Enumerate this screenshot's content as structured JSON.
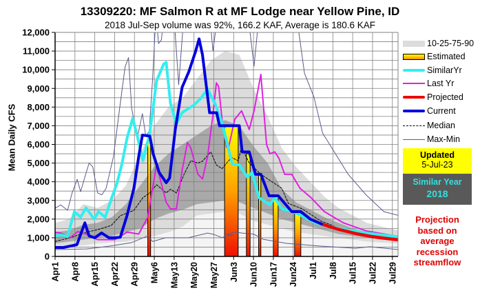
{
  "chart_data": {
    "type": "line",
    "title": "13309220: MF Salmon R at MF Lodge near Yellow Pine, ID",
    "subtitle": "2018 Jul-Sep volume was 92%, 166.2 KAF, Average is 180.6 KAF",
    "ylabel": "Mean Daily CFS",
    "xlabel": "",
    "x_unit": "days since Apr1",
    "xlim": [
      0,
      121
    ],
    "ylim": [
      0,
      12000
    ],
    "yticks": [
      "0",
      "1,000",
      "2,000",
      "3,000",
      "4,000",
      "5,000",
      "6,000",
      "7,000",
      "8,000",
      "9,000",
      "10,000",
      "11,000",
      "12,000"
    ],
    "xticks": [
      "Apr1",
      "Apr8",
      "Apr15",
      "Apr22",
      "Apr29",
      "May6",
      "May13",
      "May20",
      "May27",
      "Jun3",
      "Jun10",
      "Jun17",
      "Jun24",
      "Jul1",
      "Jul8",
      "Jul15",
      "Jul22",
      "Jul29"
    ],
    "grid": true,
    "legend_placement": "right",
    "percentile_bands": {
      "label": "10-25-75-90",
      "days": [
        0,
        5,
        10,
        15,
        20,
        25,
        30,
        35,
        40,
        45,
        50,
        55,
        60,
        65,
        70,
        75,
        80,
        85,
        90,
        95,
        100,
        105,
        110,
        115,
        121
      ],
      "p90": [
        1800,
        2000,
        2800,
        2600,
        3000,
        3800,
        5500,
        7000,
        8000,
        8500,
        9500,
        10500,
        11000,
        10800,
        9000,
        7500,
        5800,
        4800,
        4000,
        3200,
        2600,
        2200,
        1800,
        1600,
        1400
      ],
      "p75": [
        1300,
        1400,
        1700,
        1800,
        2100,
        2800,
        3800,
        4800,
        5500,
        6000,
        6500,
        7000,
        7300,
        7000,
        5900,
        5000,
        3600,
        2900,
        2500,
        2100,
        1800,
        1500,
        1300,
        1200,
        1100
      ],
      "p25": [
        700,
        800,
        900,
        1000,
        1100,
        1300,
        1500,
        2000,
        2300,
        2500,
        2800,
        2900,
        3000,
        2900,
        2600,
        2300,
        2000,
        1800,
        1600,
        1400,
        1200,
        1100,
        1000,
        900,
        850
      ],
      "p10": [
        500,
        550,
        600,
        700,
        750,
        800,
        950,
        1100,
        1300,
        1600,
        2200,
        2300,
        2400,
        2300,
        1900,
        1700,
        1500,
        1300,
        1200,
        1100,
        1000,
        900,
        800,
        750,
        700
      ]
    },
    "estimated": {
      "label": "Estimated",
      "bars": [
        {
          "start": 32.7,
          "end": 33.7,
          "value": 6450
        },
        {
          "start": 59.8,
          "end": 64.6,
          "value": 7000
        },
        {
          "start": 67.5,
          "end": 68.8,
          "value": 5500
        },
        {
          "start": 71.8,
          "end": 72.6,
          "value": 4400
        },
        {
          "start": 77.0,
          "end": 78.7,
          "value": 3200
        },
        {
          "start": 84.5,
          "end": 86.7,
          "value": 2400
        }
      ]
    },
    "series": [
      {
        "name": "Max-Min",
        "key": "max",
        "color": "#5a5a8c",
        "points": [
          [
            0,
            2580
          ],
          [
            2,
            2760
          ],
          [
            4.4,
            2470
          ],
          [
            6,
            3400
          ],
          [
            7.8,
            4130
          ],
          [
            9,
            3470
          ],
          [
            10.5,
            4250
          ],
          [
            12,
            5000
          ],
          [
            13.3,
            4800
          ],
          [
            15,
            3400
          ],
          [
            16.5,
            3300
          ],
          [
            18,
            3650
          ],
          [
            20.6,
            5350
          ],
          [
            23,
            8200
          ],
          [
            24.7,
            10150
          ],
          [
            25.9,
            10650
          ],
          [
            27,
            7950
          ],
          [
            29,
            6350
          ],
          [
            30.8,
            7650
          ],
          [
            32,
            6450
          ],
          [
            33.2,
            6700
          ],
          [
            34.4,
            9500
          ],
          [
            35.6,
            13000
          ],
          [
            36.5,
            11400
          ],
          [
            37.5,
            11600
          ],
          [
            38.5,
            13000
          ],
          [
            41.9,
            13000
          ],
          [
            43.6,
            9200
          ],
          [
            45.5,
            13000
          ],
          [
            54.5,
            13000
          ],
          [
            55.7,
            11000
          ],
          [
            57.4,
            13000
          ],
          [
            68,
            13000
          ],
          [
            70.2,
            10200
          ],
          [
            72,
            13000
          ],
          [
            86,
            12000
          ],
          [
            88,
            9800
          ],
          [
            91.3,
            8550
          ],
          [
            94.4,
            6600
          ],
          [
            98.5,
            5600
          ],
          [
            103.4,
            4400
          ],
          [
            109.7,
            3300
          ],
          [
            116,
            2400
          ],
          [
            121,
            2200
          ]
        ]
      },
      {
        "name": "Max-Min",
        "key": "min",
        "color": "#5a5a8c",
        "points": [
          [
            0,
            370
          ],
          [
            11,
            400
          ],
          [
            19,
            550
          ],
          [
            27,
            740
          ],
          [
            32.7,
            1100
          ],
          [
            34.4,
            800
          ],
          [
            39,
            1000
          ],
          [
            47,
            1000
          ],
          [
            53.8,
            1250
          ],
          [
            56,
            1180
          ],
          [
            59,
            1000
          ],
          [
            60,
            1100
          ],
          [
            63,
            1130
          ],
          [
            60.5,
            1180
          ],
          [
            63.5,
            1300
          ],
          [
            66,
            1250
          ],
          [
            70,
            1200
          ],
          [
            73.4,
            920
          ],
          [
            81.6,
            700
          ],
          [
            94,
            550
          ],
          [
            106,
            440
          ],
          [
            111,
            520
          ],
          [
            121,
            370
          ]
        ]
      },
      {
        "name": "Median",
        "key": "median",
        "color": "#000000",
        "points": [
          [
            0,
            800
          ],
          [
            5.3,
            1000
          ],
          [
            11,
            1300
          ],
          [
            15,
            1430
          ],
          [
            19.8,
            1660
          ],
          [
            23,
            2180
          ],
          [
            27.8,
            2470
          ],
          [
            31,
            3150
          ],
          [
            33.4,
            3400
          ],
          [
            35.8,
            3840
          ],
          [
            39.2,
            3400
          ],
          [
            40.7,
            3600
          ],
          [
            42.8,
            3400
          ],
          [
            45.5,
            4400
          ],
          [
            47.9,
            5130
          ],
          [
            50.4,
            5000
          ],
          [
            52,
            5100
          ],
          [
            54.9,
            5600
          ],
          [
            56.9,
            4900
          ],
          [
            58.9,
            4700
          ],
          [
            62.2,
            5300
          ],
          [
            64.6,
            5130
          ],
          [
            65.8,
            5850
          ],
          [
            68.5,
            5000
          ],
          [
            72.6,
            4400
          ],
          [
            77.5,
            3900
          ],
          [
            80,
            3650
          ],
          [
            82.3,
            2840
          ],
          [
            87.2,
            2550
          ],
          [
            93.7,
            1900
          ],
          [
            101.7,
            1440
          ],
          [
            109.7,
            1260
          ],
          [
            121,
            1000
          ]
        ]
      },
      {
        "name": "Last Yr",
        "key": "lastyr",
        "color": "#e020e0",
        "points": [
          [
            0,
            1300
          ],
          [
            2,
            1250
          ],
          [
            5.3,
            1000
          ],
          [
            8,
            1330
          ],
          [
            11,
            1200
          ],
          [
            15,
            900
          ],
          [
            21,
            900
          ],
          [
            25.4,
            1300
          ],
          [
            29.5,
            1200
          ],
          [
            32.7,
            2100
          ],
          [
            34.4,
            3650
          ],
          [
            35.8,
            4900
          ],
          [
            37.5,
            3900
          ],
          [
            39.2,
            2900
          ],
          [
            40.7,
            2550
          ],
          [
            42.8,
            2550
          ],
          [
            44.8,
            4600
          ],
          [
            46.7,
            6100
          ],
          [
            47.9,
            5800
          ],
          [
            50.4,
            4400
          ],
          [
            52,
            4150
          ],
          [
            53.8,
            5350
          ],
          [
            55.7,
            7600
          ],
          [
            56.9,
            9300
          ],
          [
            57.7,
            9100
          ],
          [
            58.9,
            7350
          ],
          [
            60.5,
            5850
          ],
          [
            61.3,
            5900
          ],
          [
            63.4,
            7350
          ],
          [
            65.8,
            7800
          ],
          [
            68.5,
            6800
          ],
          [
            70.2,
            7800
          ],
          [
            72.6,
            9750
          ],
          [
            74.6,
            6000
          ],
          [
            75.8,
            5500
          ],
          [
            77.5,
            5600
          ],
          [
            79,
            5250
          ],
          [
            81,
            4400
          ],
          [
            83.5,
            4400
          ],
          [
            86.4,
            3650
          ],
          [
            90.3,
            3150
          ],
          [
            95,
            2400
          ],
          [
            101.7,
            1800
          ],
          [
            109.7,
            1370
          ],
          [
            121,
            1070
          ]
        ]
      },
      {
        "name": "SimilarYr",
        "key": "similar",
        "color": "#33eeee",
        "points": [
          [
            0,
            1100
          ],
          [
            2,
            1150
          ],
          [
            4.4,
            1070
          ],
          [
            6.8,
            2400
          ],
          [
            9,
            2100
          ],
          [
            10.9,
            2600
          ],
          [
            13.8,
            2000
          ],
          [
            15.3,
            2400
          ],
          [
            17.7,
            2100
          ],
          [
            20,
            3150
          ],
          [
            21.8,
            3900
          ],
          [
            23.5,
            4900
          ],
          [
            25.4,
            6350
          ],
          [
            27.4,
            7400
          ],
          [
            29,
            6450
          ],
          [
            31,
            5130
          ],
          [
            33.4,
            6600
          ],
          [
            35.8,
            9400
          ],
          [
            38.3,
            10300
          ],
          [
            39.2,
            10400
          ],
          [
            40.7,
            8200
          ],
          [
            42.8,
            7100
          ],
          [
            44.8,
            7700
          ],
          [
            48.9,
            8100
          ],
          [
            51.3,
            8450
          ],
          [
            53.8,
            8950
          ],
          [
            56.4,
            8200
          ],
          [
            58.8,
            7200
          ],
          [
            61.3,
            5700
          ],
          [
            62.5,
            4950
          ],
          [
            65,
            4900
          ],
          [
            67.8,
            4250
          ],
          [
            69.5,
            4500
          ],
          [
            71.9,
            3150
          ],
          [
            75.8,
            2770
          ],
          [
            77.5,
            3150
          ],
          [
            80,
            2550
          ],
          [
            84,
            2400
          ],
          [
            88,
            2100
          ],
          [
            92,
            1800
          ],
          [
            94,
            1740
          ],
          [
            100,
            1500
          ],
          [
            110,
            1250
          ],
          [
            121,
            1050
          ]
        ]
      },
      {
        "name": "Projected",
        "key": "projected",
        "color": "#ee0000",
        "points": [
          [
            94,
            1740
          ],
          [
            100,
            1450
          ],
          [
            106,
            1230
          ],
          [
            112,
            1060
          ],
          [
            117,
            960
          ],
          [
            121,
            890
          ]
        ]
      },
      {
        "name": "Current",
        "key": "current",
        "color": "#0000dd",
        "points": [
          [
            0,
            480
          ],
          [
            3,
            480
          ],
          [
            7.7,
            630
          ],
          [
            10.5,
            1800
          ],
          [
            12,
            1100
          ],
          [
            14,
            1000
          ],
          [
            16.4,
            1260
          ],
          [
            19,
            1000
          ],
          [
            21.3,
            1000
          ],
          [
            23,
            1030
          ],
          [
            25.4,
            2200
          ],
          [
            27.8,
            3650
          ],
          [
            29.5,
            5350
          ],
          [
            30.8,
            6500
          ],
          [
            33.4,
            6450
          ],
          [
            34.6,
            5500
          ],
          [
            36.7,
            4500
          ],
          [
            39.2,
            3950
          ],
          [
            40.4,
            4200
          ],
          [
            42.4,
            6800
          ],
          [
            44.8,
            9050
          ],
          [
            47.2,
            9900
          ],
          [
            49.6,
            11000
          ],
          [
            50.8,
            11650
          ],
          [
            52,
            10800
          ],
          [
            54.5,
            7700
          ],
          [
            57,
            7700
          ],
          [
            58,
            7000
          ],
          [
            65,
            7000
          ],
          [
            66,
            5600
          ],
          [
            68.5,
            5600
          ],
          [
            70.7,
            4400
          ],
          [
            72.6,
            4400
          ],
          [
            75.5,
            3250
          ],
          [
            78.7,
            3250
          ],
          [
            83.5,
            2400
          ],
          [
            86.7,
            2400
          ],
          [
            90,
            2000
          ],
          [
            94,
            1740
          ]
        ]
      }
    ]
  },
  "legend": {
    "bands": "10-25-75-90",
    "estimated": "Estimated",
    "similar": "SimilarYr",
    "lastyr": "Last Yr",
    "projected": "Projected",
    "current": "Current",
    "median": "Median",
    "maxmin": "Max-Min"
  },
  "updated": {
    "label": "Updated",
    "date": "5-Jul-23"
  },
  "similar_year": {
    "label": "Similar Year",
    "year": "2018"
  },
  "note": {
    "lines": [
      "Projection",
      "based on",
      "average",
      "recession",
      "streamflow"
    ]
  },
  "colors": {
    "band_outer": "#dcdcdc",
    "band_inner": "#a9a9a9",
    "band_low": "#f4f4f4",
    "updated_bg": "#ffff00",
    "similar_bg": "#595959"
  }
}
